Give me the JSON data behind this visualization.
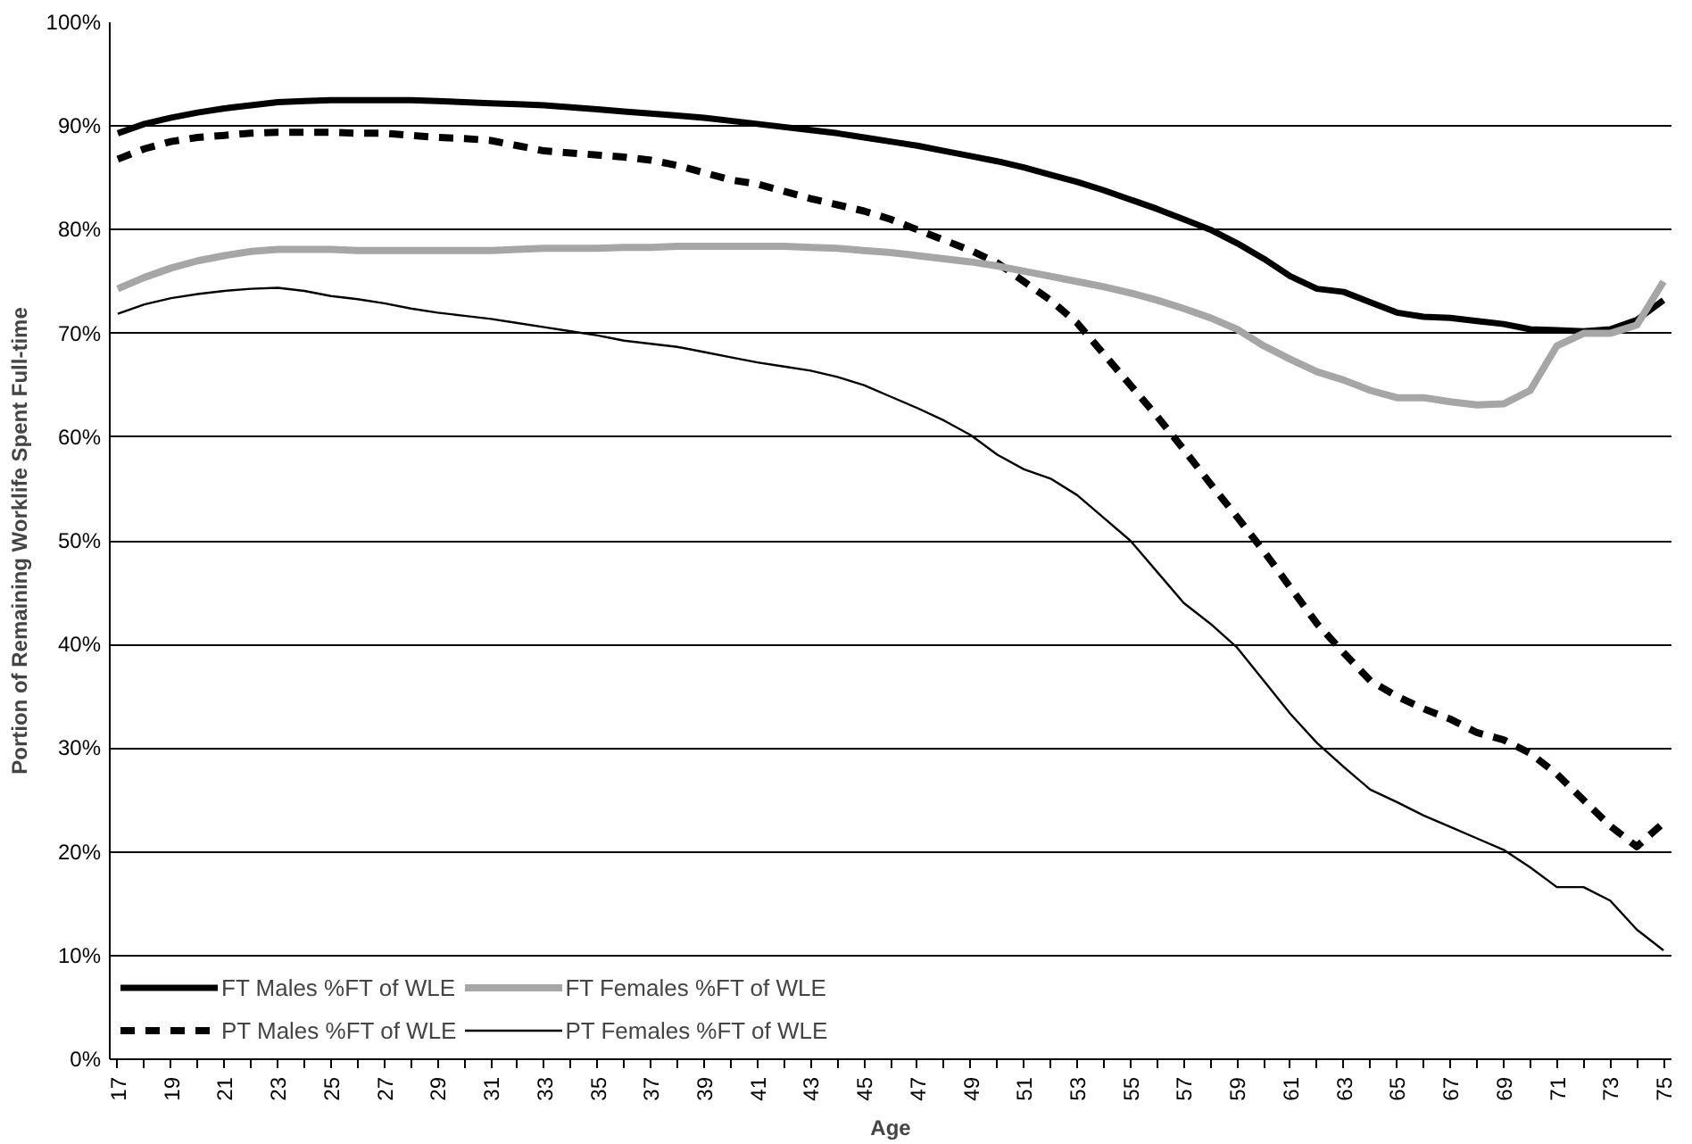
{
  "chart_data": {
    "type": "line",
    "xlabel": "Age",
    "ylabel": "Portion of Remaining Worklife Spent Full-time",
    "categories": [
      "17",
      null,
      "19",
      null,
      "21",
      null,
      "23",
      null,
      "25",
      null,
      "27",
      null,
      "29",
      null,
      "31",
      null,
      "33",
      null,
      "35",
      null,
      "37",
      null,
      "39",
      null,
      "41",
      null,
      "43",
      null,
      "45",
      null,
      "47",
      null,
      "49",
      null,
      "51",
      null,
      "53",
      null,
      "55",
      null,
      "57",
      null,
      "59",
      null,
      "61",
      null,
      "63",
      null,
      "65",
      null,
      "67",
      null,
      "69",
      null,
      "71",
      null,
      "73",
      null,
      "75"
    ],
    "ylim": [
      0,
      1
    ],
    "yticks": [
      {
        "value": 0,
        "label": "0%"
      },
      {
        "value": 0.1,
        "label": "10%"
      },
      {
        "value": 0.2,
        "label": "20%"
      },
      {
        "value": 0.3,
        "label": "30%"
      },
      {
        "value": 0.4,
        "label": "40%"
      },
      {
        "value": 0.5,
        "label": "50%"
      },
      {
        "value": 0.6,
        "label": "60%"
      },
      {
        "value": 0.7,
        "label": "70%"
      },
      {
        "value": 0.8,
        "label": "80%"
      },
      {
        "value": 0.9,
        "label": "90%"
      },
      {
        "value": 1,
        "label": "100%"
      }
    ],
    "grid": "y",
    "legend": "bottom left",
    "series": [
      {
        "name": "FT Males %FT of WLE",
        "color": "#000000",
        "line_style": "solid",
        "values": [
          0.893,
          0.902,
          0.908,
          0.913,
          0.917,
          0.92,
          0.923,
          0.924,
          0.925,
          0.925,
          0.925,
          0.925,
          0.924,
          0.923,
          0.922,
          0.921,
          0.92,
          0.918,
          0.916,
          0.914,
          0.912,
          0.91,
          0.908,
          0.905,
          0.902,
          0.899,
          0.896,
          0.893,
          0.889,
          0.885,
          0.881,
          0.876,
          0.871,
          0.866,
          0.86,
          0.853,
          0.846,
          0.838,
          0.829,
          0.82,
          0.81,
          0.8,
          0.787,
          0.772,
          0.755,
          0.743,
          0.74,
          0.73,
          0.72,
          0.716,
          0.715,
          0.712,
          0.709,
          0.704,
          0.703,
          0.702,
          0.704,
          0.713,
          0.732
        ]
      },
      {
        "name": "PT Males %FT of WLE",
        "color": "#000000",
        "line_style": "dashed",
        "values": [
          0.868,
          0.878,
          0.885,
          0.889,
          0.891,
          0.893,
          0.894,
          0.894,
          0.894,
          0.893,
          0.893,
          0.891,
          0.889,
          0.888,
          0.886,
          0.881,
          0.876,
          0.874,
          0.872,
          0.87,
          0.867,
          0.862,
          0.855,
          0.848,
          0.844,
          0.837,
          0.83,
          0.824,
          0.818,
          0.81,
          0.8,
          0.79,
          0.78,
          0.768,
          0.75,
          0.732,
          0.71,
          0.68,
          0.65,
          0.62,
          0.588,
          0.555,
          0.523,
          0.49,
          0.455,
          0.42,
          0.392,
          0.365,
          0.35,
          0.338,
          0.328,
          0.315,
          0.308,
          0.295,
          0.275,
          0.25,
          0.225,
          0.205,
          0.228
        ]
      },
      {
        "name": "FT Females %FT of WLE",
        "color": "#a6a6a6",
        "line_style": "solid",
        "values": [
          0.743,
          0.754,
          0.763,
          0.77,
          0.775,
          0.779,
          0.781,
          0.781,
          0.781,
          0.78,
          0.78,
          0.78,
          0.78,
          0.78,
          0.78,
          0.781,
          0.782,
          0.782,
          0.782,
          0.783,
          0.783,
          0.784,
          0.784,
          0.784,
          0.784,
          0.784,
          0.783,
          0.782,
          0.78,
          0.778,
          0.775,
          0.772,
          0.769,
          0.765,
          0.76,
          0.755,
          0.75,
          0.745,
          0.739,
          0.732,
          0.724,
          0.715,
          0.704,
          0.688,
          0.675,
          0.663,
          0.655,
          0.645,
          0.638,
          0.638,
          0.634,
          0.631,
          0.632,
          0.645,
          0.688,
          0.7,
          0.7,
          0.708,
          0.75
        ]
      },
      {
        "name": "PT Females %FT of WLE",
        "color": "#000000",
        "line_style": "solid",
        "values": [
          0.719,
          0.728,
          0.734,
          0.738,
          0.741,
          0.743,
          0.744,
          0.741,
          0.736,
          0.733,
          0.729,
          0.724,
          0.72,
          0.717,
          0.714,
          0.71,
          0.706,
          0.702,
          0.698,
          0.693,
          0.69,
          0.687,
          0.682,
          0.677,
          0.672,
          0.668,
          0.664,
          0.658,
          0.65,
          0.639,
          0.628,
          0.616,
          0.602,
          0.583,
          0.569,
          0.56,
          0.544,
          0.522,
          0.5,
          0.47,
          0.44,
          0.42,
          0.397,
          0.365,
          0.333,
          0.305,
          0.282,
          0.26,
          0.248,
          0.235,
          0.224,
          0.213,
          0.202,
          0.185,
          0.166,
          0.166,
          0.153,
          0.125,
          0.105
        ]
      }
    ]
  }
}
